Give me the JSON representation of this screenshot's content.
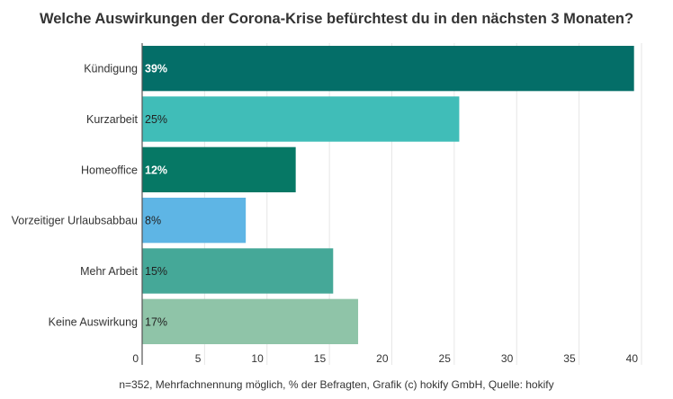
{
  "chart_data": {
    "type": "bar",
    "orientation": "horizontal",
    "title": "Welche Auswirkungen der Corona-Krise befürchtest du in den nächsten 3 Monaten?",
    "footer": "n=352, Mehrfachnennung möglich, % der Befragten, Grafik (c) hokify GmbH, Quelle: hokify",
    "categories": [
      "Kündigung",
      "Kurzarbeit",
      "Homeoffice",
      "Vorzeitiger Urlaubsabbau",
      "Mehr Arbeit",
      "Keine Auswirkung"
    ],
    "values": [
      39.4,
      25.4,
      12.3,
      8.3,
      15.3,
      17.3
    ],
    "data_labels": [
      "39%",
      "25%",
      "12%",
      "8%",
      "15%",
      "17%"
    ],
    "colors": [
      "#046e68",
      "#40bdb8",
      "#067865",
      "#5eb5e5",
      "#45a898",
      "#8fc4a8"
    ],
    "label_colors": [
      "#ffffff",
      "#222222",
      "#ffffff",
      "#222222",
      "#222222",
      "#222222"
    ],
    "xlim": [
      0,
      40
    ],
    "xticks": [
      "0",
      "5",
      "10",
      "15",
      "20",
      "25",
      "30",
      "35",
      "40"
    ],
    "grid": true
  }
}
